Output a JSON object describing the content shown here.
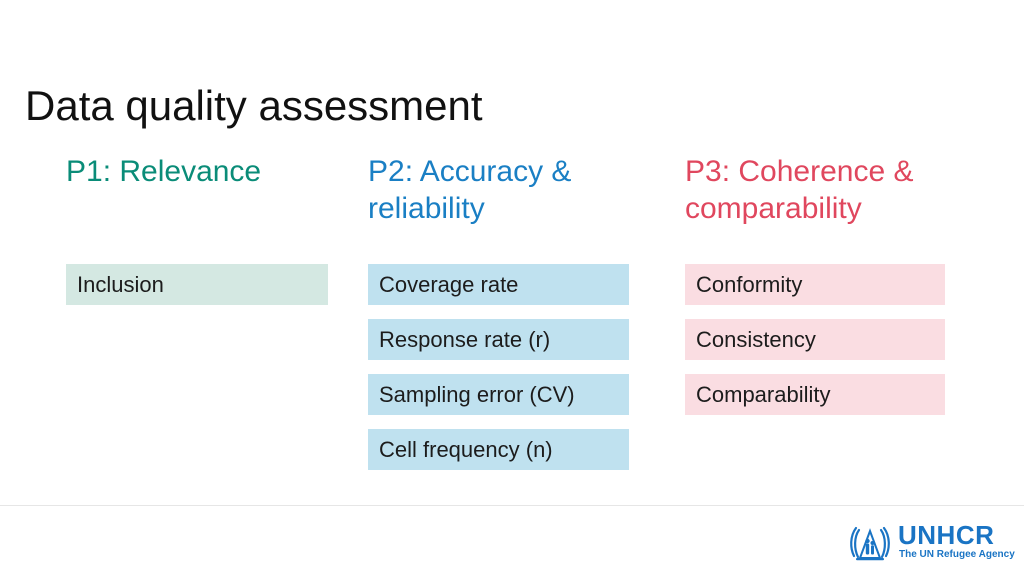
{
  "title": "Data quality assessment",
  "columns": [
    {
      "heading": "P1: Relevance",
      "color": "#0a8c78",
      "box_color": "#d4e8e2",
      "items": [
        "Inclusion"
      ]
    },
    {
      "heading": "P2: Accuracy & reliability",
      "color": "#1a7fc4",
      "box_color": "#bfe1ef",
      "items": [
        "Coverage rate",
        "Response rate (r)",
        "Sampling error (CV)",
        "Cell frequency (n)"
      ]
    },
    {
      "heading": "P3: Coherence & comparability",
      "color": "#e0475e",
      "box_color": "#fadde2",
      "items": [
        "Conformity",
        "Consistency",
        "Comparability"
      ]
    }
  ],
  "logo": {
    "wordmark": "UNHCR",
    "tagline": "The UN Refugee Agency",
    "icon": "unhcr-emblem-icon",
    "color": "#1a74c4"
  }
}
